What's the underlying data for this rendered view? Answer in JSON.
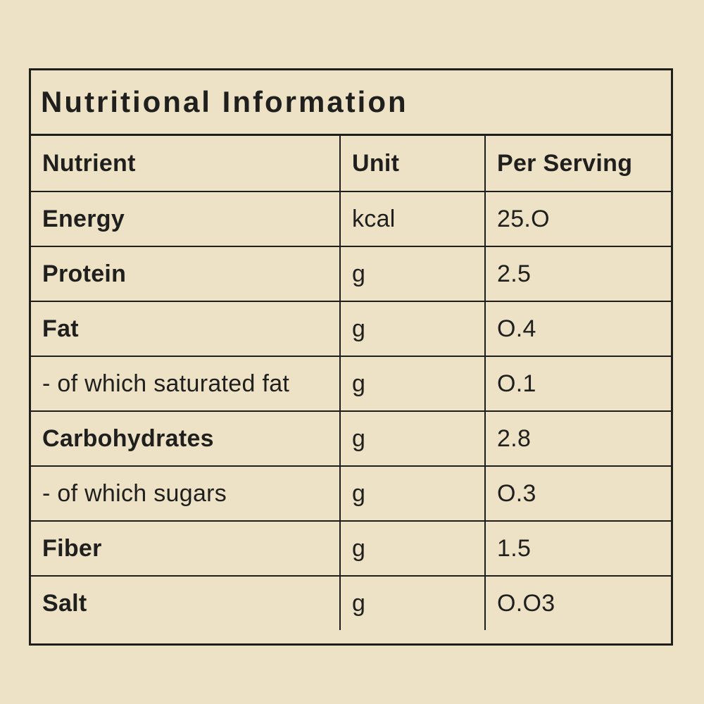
{
  "colors": {
    "background": "#EEE2C6",
    "line": "#1E1E1C",
    "text": "#1F1F1E"
  },
  "table": {
    "title": "Nutritional Information",
    "columns": [
      "Nutrient",
      "Unit",
      "Per Serving"
    ],
    "rows": [
      {
        "nutrient": "Energy",
        "unit": "kcal",
        "value": "25.O",
        "strong": true
      },
      {
        "nutrient": "Protein",
        "unit": "g",
        "value": "2.5",
        "strong": true
      },
      {
        "nutrient": "Fat",
        "unit": "g",
        "value": "O.4",
        "strong": true
      },
      {
        "nutrient": "- of which saturated fat",
        "unit": "g",
        "value": "O.1",
        "strong": false
      },
      {
        "nutrient": "Carbohydrates",
        "unit": "g",
        "value": "2.8",
        "strong": true
      },
      {
        "nutrient": "- of which sugars",
        "unit": "g",
        "value": "O.3",
        "strong": false
      },
      {
        "nutrient": "Fiber",
        "unit": "g",
        "value": "1.5",
        "strong": true
      },
      {
        "nutrient": "Salt",
        "unit": "g",
        "value": "O.O3",
        "strong": true
      }
    ]
  }
}
